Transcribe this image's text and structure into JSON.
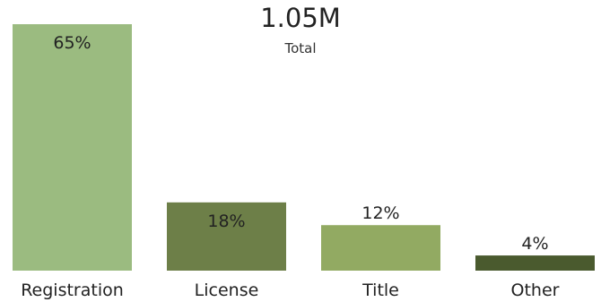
{
  "summary": {
    "total_value": "1.05M",
    "total_label": "Total"
  },
  "chart_data": {
    "type": "bar",
    "categories": [
      "Registration",
      "License",
      "Title",
      "Other"
    ],
    "values": [
      65,
      18,
      12,
      4
    ],
    "value_labels": [
      "65%",
      "18%",
      "12%",
      "4%"
    ],
    "colors": [
      "#9bbb80",
      "#6d7f48",
      "#92aa62",
      "#4a5a2e"
    ],
    "ylim": [
      0,
      65
    ],
    "grid": false,
    "legend": "none",
    "title": "",
    "xlabel": "",
    "ylabel": ""
  }
}
